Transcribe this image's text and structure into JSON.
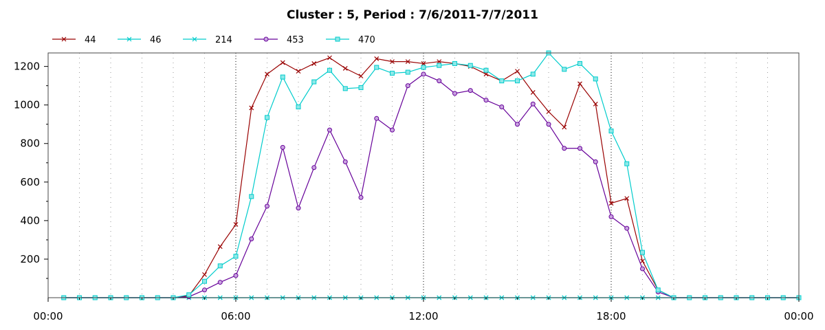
{
  "chart_data": {
    "type": "line",
    "title": "Cluster : 5, Period : 7/6/2011-7/7/2011",
    "xlabel": "",
    "ylabel": "",
    "x_ticks": [
      "00:00",
      "06:00",
      "12:00",
      "18:00",
      "00:00"
    ],
    "y_ticks": [
      "200",
      "400",
      "600",
      "800",
      "1000",
      "1200"
    ],
    "xlim": [
      0,
      24
    ],
    "ylim": [
      0,
      1270
    ],
    "grid": "vertical dotted",
    "legend_position": "top-left",
    "series": [
      {
        "name": "44",
        "color": "#990000",
        "marker": "x",
        "x": [
          0.5,
          1,
          1.5,
          2,
          2.5,
          3,
          3.5,
          4,
          4.5,
          5,
          5.5,
          6,
          6.5,
          7,
          7.5,
          8,
          8.5,
          9,
          9.5,
          10,
          10.5,
          11,
          11.5,
          12,
          12.5,
          13,
          13.5,
          14,
          14.5,
          15,
          15.5,
          16,
          16.5,
          17,
          17.5,
          18,
          18.5,
          19,
          19.5,
          20,
          20.5,
          21,
          21.5,
          22,
          22.5,
          23,
          23.5,
          24
        ],
        "y": [
          0,
          0,
          0,
          0,
          0,
          0,
          0,
          0,
          10,
          120,
          265,
          380,
          985,
          1160,
          1220,
          1175,
          1215,
          1245,
          1190,
          1150,
          1240,
          1225,
          1225,
          1215,
          1225,
          1215,
          1200,
          1160,
          1125,
          1175,
          1065,
          965,
          885,
          1110,
          1005,
          490,
          515,
          190,
          40,
          0,
          0,
          0,
          0,
          0,
          0,
          0,
          0,
          0
        ]
      },
      {
        "name": "46",
        "color": "#00cccc",
        "marker": "asterisk",
        "x": [
          0.5,
          1,
          1.5,
          2,
          2.5,
          3,
          3.5,
          4,
          4.5,
          5,
          5.5,
          6,
          6.5,
          7,
          7.5,
          8,
          8.5,
          9,
          9.5,
          10,
          10.5,
          11,
          11.5,
          12,
          12.5,
          13,
          13.5,
          14,
          14.5,
          15,
          15.5,
          16,
          16.5,
          17,
          17.5,
          18,
          18.5,
          19,
          19.5,
          20,
          20.5,
          21,
          21.5,
          22,
          22.5,
          23,
          23.5,
          24
        ],
        "y": [
          0,
          0,
          0,
          0,
          0,
          0,
          0,
          0,
          0,
          0,
          0,
          0,
          0,
          0,
          0,
          0,
          0,
          0,
          0,
          0,
          0,
          0,
          0,
          0,
          0,
          0,
          0,
          0,
          0,
          0,
          0,
          0,
          0,
          0,
          0,
          0,
          0,
          0,
          0,
          0,
          0,
          0,
          0,
          0,
          0,
          0,
          0,
          0
        ]
      },
      {
        "name": "214",
        "color": "#00cccc",
        "marker": "x",
        "x": [
          0.5,
          1,
          1.5,
          2,
          2.5,
          3,
          3.5,
          4,
          4.5,
          5,
          5.5,
          6,
          6.5,
          7,
          7.5,
          8,
          8.5,
          9,
          9.5,
          10,
          10.5,
          11,
          11.5,
          12,
          12.5,
          13,
          13.5,
          14,
          14.5,
          15,
          15.5,
          16,
          16.5,
          17,
          17.5,
          18,
          18.5,
          19,
          19.5,
          20,
          20.5,
          21,
          21.5,
          22,
          22.5,
          23,
          23.5,
          24
        ],
        "y": [
          0,
          0,
          0,
          0,
          0,
          0,
          0,
          0,
          0,
          0,
          0,
          0,
          0,
          0,
          0,
          0,
          0,
          0,
          0,
          0,
          0,
          0,
          0,
          0,
          0,
          0,
          0,
          0,
          0,
          0,
          0,
          0,
          0,
          0,
          0,
          0,
          0,
          0,
          0,
          0,
          0,
          0,
          0,
          0,
          0,
          0,
          0,
          0
        ]
      },
      {
        "name": "453",
        "color": "#660099",
        "marker": "circle",
        "x": [
          0.5,
          1,
          1.5,
          2,
          2.5,
          3,
          3.5,
          4,
          4.5,
          5,
          5.5,
          6,
          6.5,
          7,
          7.5,
          8,
          8.5,
          9,
          9.5,
          10,
          10.5,
          11,
          11.5,
          12,
          12.5,
          13,
          13.5,
          14,
          14.5,
          15,
          15.5,
          16,
          16.5,
          17,
          17.5,
          18,
          18.5,
          19,
          19.5,
          20,
          20.5,
          21,
          21.5,
          22,
          22.5,
          23,
          23.5,
          24
        ],
        "y": [
          0,
          0,
          0,
          0,
          0,
          0,
          0,
          0,
          5,
          40,
          80,
          115,
          305,
          475,
          780,
          465,
          675,
          870,
          705,
          520,
          930,
          870,
          1100,
          1160,
          1125,
          1060,
          1075,
          1025,
          990,
          900,
          1005,
          900,
          775,
          775,
          705,
          420,
          360,
          150,
          30,
          0,
          0,
          0,
          0,
          0,
          0,
          0,
          0,
          0
        ]
      },
      {
        "name": "470",
        "color": "#00cccc",
        "marker": "square",
        "x": [
          0.5,
          1,
          1.5,
          2,
          2.5,
          3,
          3.5,
          4,
          4.5,
          5,
          5.5,
          6,
          6.5,
          7,
          7.5,
          8,
          8.5,
          9,
          9.5,
          10,
          10.5,
          11,
          11.5,
          12,
          12.5,
          13,
          13.5,
          14,
          14.5,
          15,
          15.5,
          16,
          16.5,
          17,
          17.5,
          18,
          18.5,
          19,
          19.5,
          20,
          20.5,
          21,
          21.5,
          22,
          22.5,
          23,
          23.5,
          24
        ],
        "y": [
          0,
          0,
          0,
          0,
          0,
          0,
          0,
          0,
          15,
          85,
          165,
          215,
          525,
          935,
          1145,
          990,
          1120,
          1180,
          1085,
          1090,
          1195,
          1165,
          1170,
          1195,
          1205,
          1215,
          1205,
          1180,
          1125,
          1125,
          1160,
          1270,
          1185,
          1215,
          1135,
          865,
          695,
          235,
          40,
          0,
          0,
          0,
          0,
          0,
          0,
          0,
          0,
          0
        ]
      }
    ]
  }
}
